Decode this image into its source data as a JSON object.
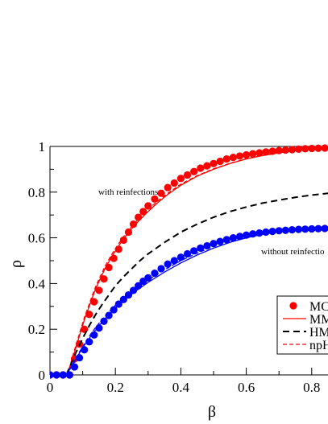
{
  "chart_data": {
    "type": "line",
    "title": "",
    "xlabel": "β",
    "ylabel": "ρ",
    "xlim": [
      0,
      0.85
    ],
    "ylim": [
      0,
      1
    ],
    "x_ticks": [
      "0",
      "0.2",
      "0.4",
      "0.6",
      "0.8"
    ],
    "y_ticks": [
      "0",
      "0.2",
      "0.4",
      "0.6",
      "0.8",
      "1"
    ],
    "grid": false,
    "legend_position": "bottom-right",
    "annotations": [
      {
        "text": "with reinfections",
        "x": 0.2,
        "y": 0.79
      },
      {
        "text": "without reinfectio",
        "x": 0.68,
        "y": 0.545
      }
    ],
    "legend": [
      {
        "label": "MC",
        "style": "markers",
        "color": "#ff0000"
      },
      {
        "label": "MM",
        "style": "solid",
        "color": "#ff0000"
      },
      {
        "label": "HM",
        "style": "dashed",
        "color": "#000000"
      },
      {
        "label": "npH",
        "style": "dashed",
        "color": "#ff0000"
      }
    ],
    "series": [
      {
        "style": "markers",
        "color": "#ff0000",
        "x": [
          0,
          0.02,
          0.04,
          0.06,
          0.075,
          0.09,
          0.105,
          0.12,
          0.135,
          0.15,
          0.165,
          0.18,
          0.195,
          0.21,
          0.225,
          0.24,
          0.255,
          0.27,
          0.285,
          0.3,
          0.32,
          0.34,
          0.36,
          0.38,
          0.4,
          0.42,
          0.44,
          0.46,
          0.48,
          0.5,
          0.52,
          0.54,
          0.56,
          0.58,
          0.6,
          0.62,
          0.64,
          0.66,
          0.68,
          0.7,
          0.72,
          0.74,
          0.76,
          0.78,
          0.8,
          0.82,
          0.84
        ],
        "y": [
          0,
          0,
          0,
          0,
          0.07,
          0.135,
          0.2,
          0.265,
          0.32,
          0.37,
          0.42,
          0.47,
          0.51,
          0.55,
          0.59,
          0.625,
          0.66,
          0.69,
          0.715,
          0.74,
          0.77,
          0.795,
          0.82,
          0.84,
          0.86,
          0.875,
          0.89,
          0.905,
          0.915,
          0.925,
          0.935,
          0.945,
          0.952,
          0.958,
          0.963,
          0.968,
          0.972,
          0.976,
          0.979,
          0.982,
          0.984,
          0.986,
          0.988,
          0.99,
          0.991,
          0.992,
          0.993
        ]
      },
      {
        "style": "solid",
        "color": "#ff0000",
        "x": [
          0.05,
          0.06,
          0.075,
          0.09,
          0.105,
          0.12,
          0.135,
          0.15,
          0.17,
          0.19,
          0.21,
          0.23,
          0.25,
          0.275,
          0.3,
          0.33,
          0.36,
          0.4,
          0.45,
          0.5,
          0.55,
          0.6,
          0.65,
          0.7,
          0.75,
          0.8,
          0.85
        ],
        "y": [
          0,
          0.03,
          0.1,
          0.17,
          0.24,
          0.3,
          0.36,
          0.41,
          0.47,
          0.52,
          0.565,
          0.605,
          0.64,
          0.68,
          0.715,
          0.755,
          0.79,
          0.83,
          0.87,
          0.9,
          0.925,
          0.945,
          0.96,
          0.972,
          0.981,
          0.988,
          0.993
        ]
      },
      {
        "style": "dashed",
        "color": "#ff0000",
        "x": [
          0.05,
          0.06,
          0.075,
          0.09,
          0.105,
          0.12,
          0.135,
          0.15,
          0.17,
          0.19,
          0.21,
          0.23,
          0.25,
          0.275,
          0.3,
          0.33,
          0.36,
          0.4,
          0.45,
          0.5,
          0.55,
          0.6,
          0.65,
          0.7,
          0.75,
          0.8,
          0.85
        ],
        "y": [
          0,
          0.035,
          0.11,
          0.18,
          0.25,
          0.31,
          0.37,
          0.42,
          0.48,
          0.53,
          0.575,
          0.615,
          0.65,
          0.69,
          0.725,
          0.762,
          0.795,
          0.835,
          0.872,
          0.902,
          0.926,
          0.946,
          0.961,
          0.973,
          0.982,
          0.989,
          0.994
        ]
      },
      {
        "style": "dashed",
        "color": "#000000",
        "x": [
          0.05,
          0.065,
          0.08,
          0.1,
          0.12,
          0.14,
          0.16,
          0.18,
          0.2,
          0.225,
          0.25,
          0.275,
          0.3,
          0.35,
          0.4,
          0.45,
          0.5,
          0.55,
          0.6,
          0.65,
          0.7,
          0.75,
          0.8,
          0.85
        ],
        "y": [
          0,
          0.05,
          0.1,
          0.16,
          0.215,
          0.265,
          0.31,
          0.35,
          0.39,
          0.43,
          0.465,
          0.5,
          0.53,
          0.58,
          0.625,
          0.66,
          0.69,
          0.715,
          0.735,
          0.752,
          0.765,
          0.777,
          0.787,
          0.795
        ]
      },
      {
        "style": "markers",
        "color": "#0000ff",
        "x": [
          0,
          0.02,
          0.04,
          0.06,
          0.075,
          0.09,
          0.105,
          0.12,
          0.135,
          0.15,
          0.165,
          0.18,
          0.195,
          0.21,
          0.225,
          0.24,
          0.255,
          0.27,
          0.285,
          0.3,
          0.32,
          0.34,
          0.36,
          0.38,
          0.4,
          0.42,
          0.44,
          0.46,
          0.48,
          0.5,
          0.52,
          0.54,
          0.56,
          0.58,
          0.6,
          0.62,
          0.64,
          0.66,
          0.68,
          0.7,
          0.72,
          0.74,
          0.76,
          0.78,
          0.8,
          0.82,
          0.84
        ],
        "y": [
          0,
          0,
          0,
          0,
          0.035,
          0.075,
          0.11,
          0.145,
          0.175,
          0.205,
          0.235,
          0.26,
          0.285,
          0.31,
          0.33,
          0.35,
          0.37,
          0.39,
          0.41,
          0.425,
          0.445,
          0.465,
          0.485,
          0.5,
          0.515,
          0.53,
          0.543,
          0.555,
          0.565,
          0.575,
          0.584,
          0.592,
          0.6,
          0.606,
          0.612,
          0.617,
          0.621,
          0.625,
          0.628,
          0.631,
          0.633,
          0.635,
          0.637,
          0.638,
          0.639,
          0.64,
          0.641
        ]
      },
      {
        "style": "solid",
        "color": "#0000ff",
        "x": [
          0.05,
          0.07,
          0.09,
          0.11,
          0.13,
          0.15,
          0.17,
          0.2,
          0.23,
          0.26,
          0.3,
          0.35,
          0.4,
          0.45,
          0.5,
          0.55,
          0.6,
          0.65,
          0.7,
          0.75,
          0.8,
          0.85
        ],
        "y": [
          0,
          0.045,
          0.095,
          0.14,
          0.18,
          0.215,
          0.248,
          0.293,
          0.33,
          0.365,
          0.405,
          0.45,
          0.49,
          0.525,
          0.555,
          0.58,
          0.6,
          0.615,
          0.627,
          0.635,
          0.641,
          0.645
        ]
      },
      {
        "style": "dashed",
        "color": "#0000ff",
        "x": [
          0.05,
          0.07,
          0.09,
          0.11,
          0.13,
          0.15,
          0.17,
          0.2,
          0.23,
          0.26,
          0.3,
          0.35,
          0.4,
          0.45,
          0.5,
          0.55,
          0.6,
          0.65,
          0.7,
          0.75,
          0.8,
          0.85
        ],
        "y": [
          0,
          0.05,
          0.1,
          0.148,
          0.19,
          0.226,
          0.26,
          0.305,
          0.342,
          0.375,
          0.415,
          0.46,
          0.5,
          0.533,
          0.562,
          0.586,
          0.605,
          0.62,
          0.631,
          0.639,
          0.645,
          0.649
        ]
      }
    ]
  }
}
